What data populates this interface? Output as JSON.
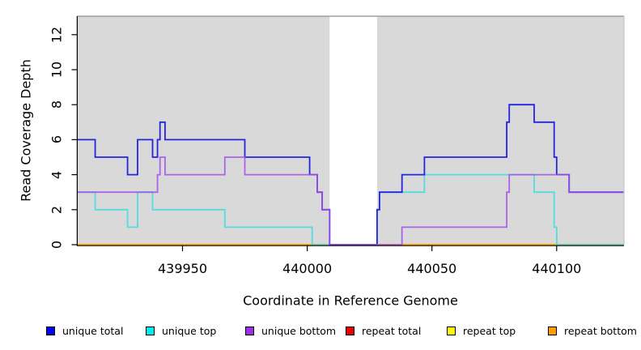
{
  "chart_data": {
    "type": "line",
    "subtype": "step",
    "title": "",
    "xlabel": "Coordinate in Reference Genome",
    "ylabel": "Read Coverage Depth",
    "xlim": [
      439908,
      440127
    ],
    "ylim": [
      0,
      13
    ],
    "x_ticks": [
      439950,
      440000,
      440050,
      440100
    ],
    "y_ticks": [
      0,
      2,
      4,
      6,
      8,
      10,
      12
    ],
    "grid": false,
    "plot_bg": "#d9d9d9",
    "no_data_region": {
      "x_start": 440009,
      "x_end": 440028,
      "color": "#ffffff"
    },
    "series": [
      {
        "name": "repeat total",
        "color": "#e80000",
        "opacity": 1,
        "steps": [
          [
            439908,
            0
          ]
        ]
      },
      {
        "name": "repeat top",
        "color": "#ffff00",
        "opacity": 1,
        "steps": [
          [
            439908,
            0
          ]
        ]
      },
      {
        "name": "repeat bottom",
        "color": "#ff9d00",
        "opacity": 1,
        "steps": [
          [
            439908,
            0
          ]
        ]
      },
      {
        "name": "unique top",
        "color": "#35dcdc",
        "opacity": 0.8,
        "steps": [
          [
            439908,
            3
          ],
          [
            439915,
            2
          ],
          [
            439928,
            1
          ],
          [
            439932,
            3
          ],
          [
            439938,
            2
          ],
          [
            439967,
            1
          ],
          [
            440002,
            0
          ],
          [
            440028,
            2
          ],
          [
            440029,
            3
          ],
          [
            440047,
            4
          ],
          [
            440091,
            3
          ],
          [
            440099,
            1
          ],
          [
            440100,
            0
          ]
        ]
      },
      {
        "name": "unique total",
        "color": "#2525e0",
        "opacity": 1,
        "steps": [
          [
            439908,
            6
          ],
          [
            439915,
            5
          ],
          [
            439928,
            4
          ],
          [
            439932,
            6
          ],
          [
            439938,
            5
          ],
          [
            439940,
            6
          ],
          [
            439941,
            7
          ],
          [
            439943,
            6
          ],
          [
            439975,
            5
          ],
          [
            440001,
            4
          ],
          [
            440004,
            3
          ],
          [
            440006,
            2
          ],
          [
            440009,
            0
          ],
          [
            440028,
            2
          ],
          [
            440029,
            3
          ],
          [
            440038,
            4
          ],
          [
            440047,
            5
          ],
          [
            440080,
            7
          ],
          [
            440081,
            8
          ],
          [
            440091,
            7
          ],
          [
            440099,
            5
          ],
          [
            440100,
            4
          ],
          [
            440105,
            3
          ]
        ]
      },
      {
        "name": "unique bottom",
        "color": "#a050e8",
        "opacity": 0.85,
        "steps": [
          [
            439908,
            3
          ],
          [
            439940,
            4
          ],
          [
            439941,
            5
          ],
          [
            439943,
            4
          ],
          [
            439967,
            5
          ],
          [
            439975,
            4
          ],
          [
            440004,
            3
          ],
          [
            440006,
            2
          ],
          [
            440009,
            0
          ],
          [
            440038,
            1
          ],
          [
            440080,
            3
          ],
          [
            440081,
            4
          ],
          [
            440105,
            3
          ]
        ]
      }
    ],
    "legend": {
      "position": "bottom",
      "entries": [
        {
          "label": "unique total",
          "color": "#0000ee"
        },
        {
          "label": "unique top",
          "color": "#00eded"
        },
        {
          "label": "unique bottom",
          "color": "#9b30e8"
        },
        {
          "label": "repeat total",
          "color": "#e80000"
        },
        {
          "label": "repeat top",
          "color": "#ffff00"
        },
        {
          "label": "repeat bottom",
          "color": "#ff9d00"
        }
      ]
    }
  }
}
